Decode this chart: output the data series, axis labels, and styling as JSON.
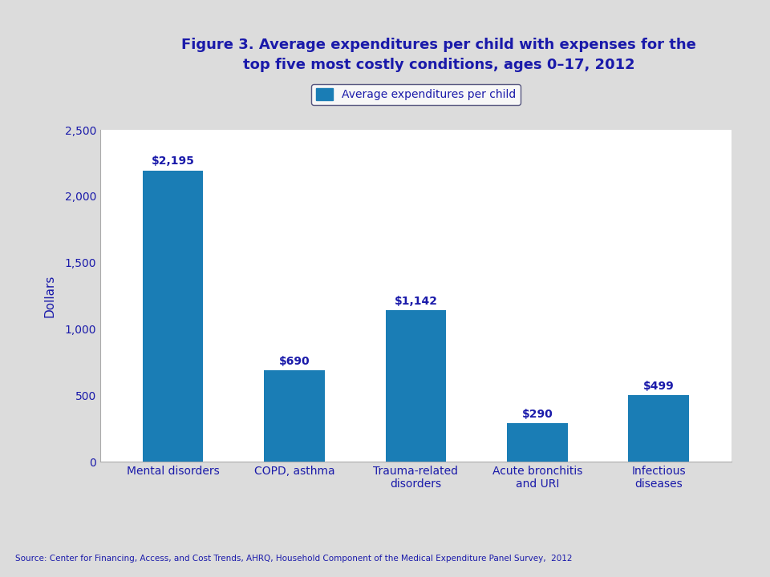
{
  "title_line1": "Figure 3. Average expenditures per child with expenses for the",
  "title_line2": "top five most costly conditions, ages 0–17, 2012",
  "title_color": "#1a1aaa",
  "categories": [
    "Mental disorders",
    "COPD, asthma",
    "Trauma-related\ndisorders",
    "Acute bronchitis\nand URI",
    "Infectious\ndiseases"
  ],
  "values": [
    2195,
    690,
    1142,
    290,
    499
  ],
  "labels": [
    "$2,195",
    "$690",
    "$1,142",
    "$290",
    "$499"
  ],
  "bar_color": "#1a7db5",
  "ylabel": "Dollars",
  "ylim": [
    0,
    2500
  ],
  "yticks": [
    0,
    500,
    1000,
    1500,
    2000,
    2500
  ],
  "ytick_labels": [
    "0",
    "500",
    "1,000",
    "1,500",
    "2,000",
    "2,500"
  ],
  "legend_label": "Average expenditures per child",
  "source_text": "Source: Center for Financing, Access, and Cost Trends, AHRQ, Household Component of the Medical Expenditure Panel Survey,  2012",
  "bg_color": "#dcdcdc",
  "plot_bg_color": "#ffffff",
  "label_color": "#1a1aaa",
  "axis_color": "#1a1aaa",
  "tick_color": "#1a1aaa",
  "header_bg": "#d0d0d8",
  "separator_color": "#999999"
}
